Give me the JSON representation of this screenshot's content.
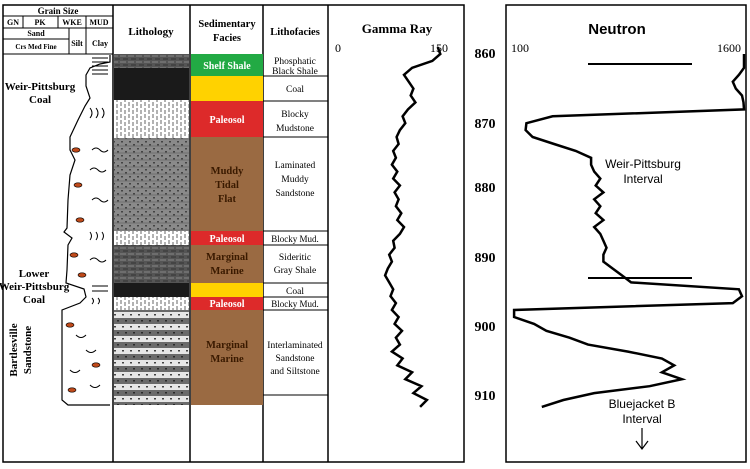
{
  "grain_size": {
    "title": "Grain Size",
    "codes": [
      "GN",
      "PK",
      "WKE",
      "MUD"
    ],
    "sand_label": "Sand",
    "sand_sub": "Crs Med Fine",
    "silt": "Silt",
    "clay": "Clay"
  },
  "headers": {
    "lithology": "Lithology",
    "facies_line1": "Sedimentary",
    "facies_line2": "Facies",
    "lithofacies": "Lithofacies",
    "gamma": "Gamma Ray",
    "neutron": "Neutron"
  },
  "side_labels": {
    "weir_line1": "Weir-Pittsburg",
    "weir_line2": "Coal",
    "lower_line1": "Lower",
    "lower_line2": "Weir-Pittsburg",
    "lower_line3": "Coal",
    "bartles_line1": "Bartlesville",
    "bartles_line2": "Sandstone"
  },
  "facies": [
    {
      "label": "Shelf Shale",
      "color": "#22aa44",
      "text_color": "#ffffff"
    },
    {
      "label": "",
      "color": "#ffd200",
      "text_color": "#000000"
    },
    {
      "label": "Paleosol",
      "color": "#dd2a2a",
      "text_color": "#ffffff"
    },
    {
      "label_lines": [
        "Muddy",
        "Tidal",
        "Flat"
      ],
      "color": "#9a6a42",
      "text_color": "#3a1a00"
    },
    {
      "label": "Paleosol",
      "color": "#dd2a2a",
      "text_color": "#ffffff"
    },
    {
      "label_lines": [
        "Marginal",
        "Marine"
      ],
      "color": "#9a6a42",
      "text_color": "#3a1a00"
    },
    {
      "label": "",
      "color": "#ffd200",
      "text_color": "#000000"
    },
    {
      "label": "Paleosol",
      "color": "#dd2a2a",
      "text_color": "#ffffff"
    },
    {
      "label_lines": [
        "Marginal",
        "Marine"
      ],
      "color": "#9a6a42",
      "text_color": "#3a1a00"
    }
  ],
  "lithofacies": [
    {
      "lines": [
        "Phosphatic",
        "Black Shale"
      ]
    },
    {
      "lines": [
        "Coal"
      ]
    },
    {
      "lines": [
        "Blocky",
        "Mudstone"
      ]
    },
    {
      "lines": [
        "Laminated",
        "Muddy",
        "Sandstone"
      ]
    },
    {
      "lines": [
        "Blocky Mud."
      ]
    },
    {
      "lines": [
        "Sideritic",
        "Gray Shale"
      ]
    },
    {
      "lines": [
        "Coal"
      ]
    },
    {
      "lines": [
        "Blocky Mud."
      ]
    },
    {
      "lines": [
        "Interlaminated",
        "Sandstone",
        "and Siltstone"
      ]
    }
  ],
  "gamma_axis": {
    "min": 0,
    "max": 150,
    "min_label": "0",
    "max_label": "150"
  },
  "neutron_axis": {
    "min": 100,
    "max": 1600,
    "min_label": "100",
    "max_label": "1600"
  },
  "depth_labels": [
    "860",
    "870",
    "880",
    "890",
    "900",
    "910"
  ],
  "annotations": {
    "weir_interval_line1": "Weir-Pittsburg",
    "weir_interval_line2": "Interval",
    "blue_line1": "Bluejacket B",
    "blue_line2": "Interval"
  },
  "chart_data": {
    "type": "line",
    "depth_axis": {
      "range": [
        858,
        916
      ],
      "ticks": [
        860,
        870,
        880,
        890,
        900,
        910
      ]
    },
    "series": [
      {
        "name": "Gamma Ray",
        "depth": [
          859,
          860,
          861,
          862,
          863,
          864,
          865,
          866,
          867,
          868,
          869,
          870,
          871,
          872,
          873,
          874,
          875,
          876,
          877,
          878,
          879,
          880,
          881,
          882,
          883,
          884,
          885,
          886,
          887,
          888,
          889,
          890,
          891,
          892,
          893,
          894,
          895,
          896,
          897,
          898,
          899,
          900,
          901,
          902,
          903,
          904,
          905,
          906,
          907,
          908,
          909,
          910,
          911
        ],
        "values": [
          148,
          152,
          140,
          110,
          98,
          105,
          112,
          108,
          115,
          104,
          96,
          100,
          92,
          87,
          90,
          82,
          86,
          80,
          88,
          82,
          92,
          84,
          90,
          86,
          94,
          88,
          98,
          92,
          82,
          84,
          76,
          80,
          74,
          70,
          76,
          82,
          78,
          86,
          80,
          90,
          84,
          95,
          86,
          92,
          80,
          96,
          88,
          110,
          100,
          124,
          112,
          132,
          122
        ]
      },
      {
        "name": "Neutron",
        "depth": [
          860,
          861,
          862,
          863,
          864,
          865,
          866,
          867,
          868,
          869,
          870,
          871,
          872,
          873,
          874,
          875,
          876,
          877,
          878,
          879,
          880,
          881,
          882,
          883,
          884,
          885,
          886,
          887,
          888,
          889,
          890,
          891,
          892,
          893,
          894,
          895,
          896,
          897,
          898,
          899,
          900,
          901,
          902,
          903,
          904,
          905,
          906,
          907,
          908,
          909,
          910,
          911
        ],
        "values": [
          1620,
          1620,
          1620,
          1580,
          1540,
          1560,
          1600,
          1610,
          1620,
          370,
          200,
          195,
          240,
          380,
          520,
          620,
          620,
          640,
          680,
          650,
          700,
          640,
          680,
          650,
          700,
          640,
          680,
          700,
          720,
          700,
          700,
          760,
          820,
          880,
          1580,
          1600,
          1540,
          120,
          120,
          250,
          330,
          480,
          600,
          860,
          1080,
          1160,
          1080,
          1210,
          1000,
          640,
          440,
          300
        ]
      }
    ]
  }
}
